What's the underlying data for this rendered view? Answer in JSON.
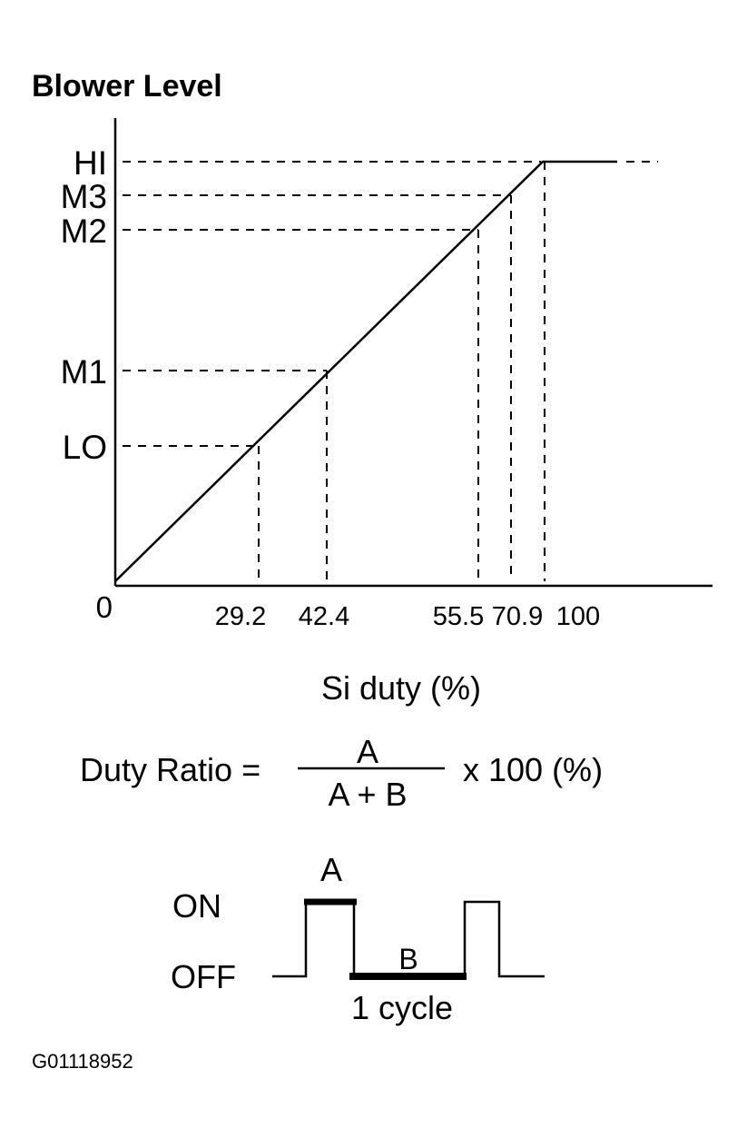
{
  "title": "Blower Level",
  "y_levels": [
    "HI",
    "M3",
    "M2",
    "M1",
    "LO"
  ],
  "origin": "0",
  "x_labels": [
    "29.2",
    "42.4",
    "55.5",
    "70.9",
    "100"
  ],
  "x_axis_label": "Si duty (%)",
  "formula": {
    "left": "Duty Ratio =",
    "numerator": "A",
    "denominator": "A + B",
    "right": "x 100 (%)"
  },
  "waveform": {
    "on": "ON",
    "off": "OFF",
    "a": "A",
    "b": "B",
    "cycle": "1 cycle"
  },
  "figure_id": "G01118952"
}
